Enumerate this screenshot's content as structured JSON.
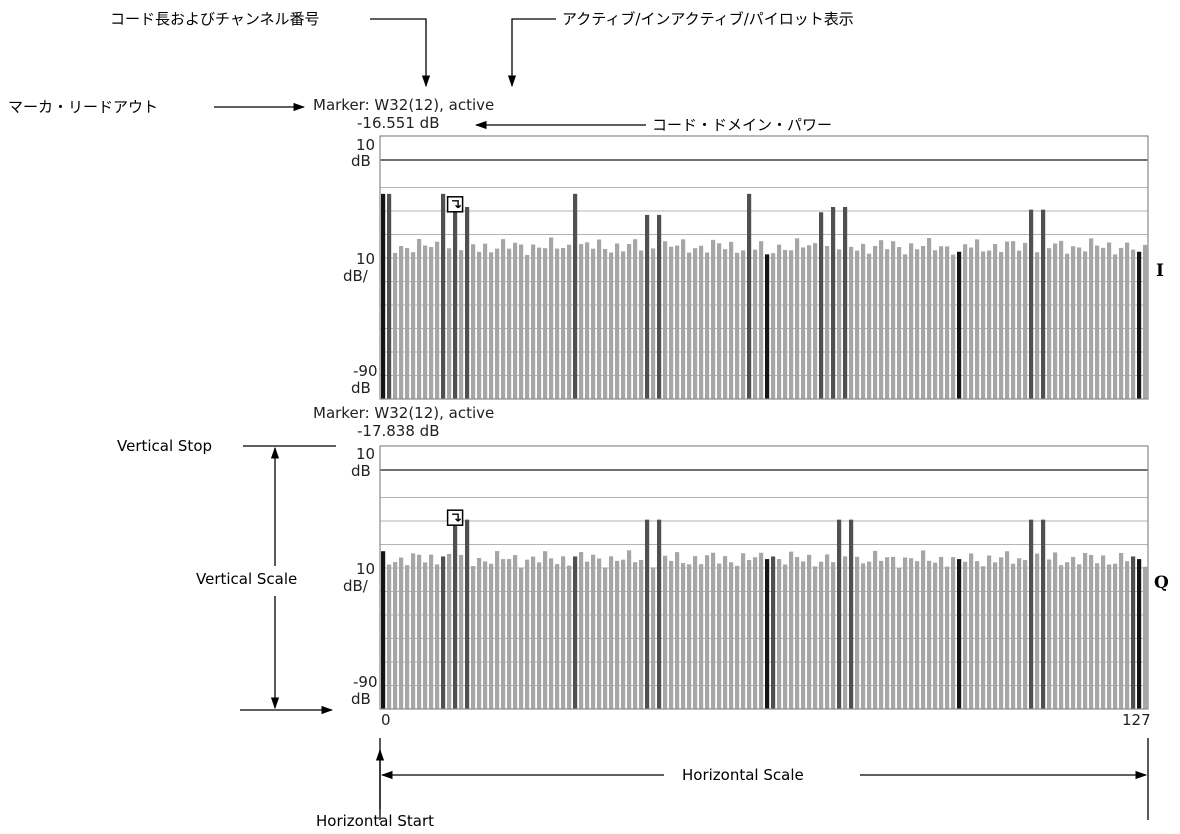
{
  "annotations": {
    "code_length_channel": "コード長およびチャンネル番号",
    "active_inactive_pilot": "アクティブ/インアクティブ/パイロット表示",
    "marker_readout": "マーカ・リードアウト",
    "code_domain_power": "コード・ドメイン・パワー",
    "vertical_stop": "Vertical Stop",
    "vertical_scale": "Vertical Scale",
    "horizontal_scale": "Horizontal Scale",
    "horizontal_start": "Horizontal Start"
  },
  "colors": {
    "bar_light": "#a6a6a6",
    "bar_active": "#505050",
    "bar_pilot": "#151515",
    "grid": "#b4b4b4",
    "frame": "#8a8a8a"
  },
  "panels": [
    {
      "channel": "I",
      "marker_line": "Marker: W32(12),   active",
      "marker_value": "-16.551 dB",
      "top_label": [
        "10",
        "dB"
      ],
      "scale_label": [
        "10",
        "dB/"
      ],
      "bottom_label": [
        "-90",
        "dB"
      ]
    },
    {
      "channel": "Q",
      "marker_line": "Marker: W32(12),   active",
      "marker_value": "-17.838 dB",
      "top_label": [
        "10",
        "dB"
      ],
      "scale_label": [
        "10",
        "dB/"
      ],
      "bottom_label": [
        "-90",
        "dB"
      ]
    }
  ],
  "x_axis": {
    "start": "0",
    "end": "127"
  },
  "chart_data": [
    {
      "type": "bar",
      "channel": "I",
      "x": [
        0,
        127
      ],
      "ylim": [
        -90,
        10
      ],
      "marker_code": 12,
      "ymax_label": "10 dB",
      "ymin_label": "-90 dB",
      "scale": "10 dB/",
      "noise_floor_db": -32,
      "active_codes": [
        {
          "code": 1,
          "db": -12
        },
        {
          "code": 10,
          "db": -12
        },
        {
          "code": 12,
          "db": -16.551
        },
        {
          "code": 14,
          "db": -17
        },
        {
          "code": 32,
          "db": -12
        },
        {
          "code": 44,
          "db": -20
        },
        {
          "code": 46,
          "db": -20
        },
        {
          "code": 61,
          "db": -12
        },
        {
          "code": 64,
          "db": -15
        },
        {
          "code": 73,
          "db": -19
        },
        {
          "code": 75,
          "db": -17
        },
        {
          "code": 77,
          "db": -17
        },
        {
          "code": 108,
          "db": -18
        },
        {
          "code": 110,
          "db": -18
        }
      ],
      "pilot_codes": [
        {
          "code": 0,
          "db": -12
        },
        {
          "code": 64,
          "db": -35
        },
        {
          "code": 96,
          "db": -34
        },
        {
          "code": 126,
          "db": -34
        }
      ]
    },
    {
      "type": "bar",
      "channel": "Q",
      "x": [
        0,
        127
      ],
      "ylim": [
        -90,
        10
      ],
      "marker_code": 12,
      "ymax_label": "10 dB",
      "ymin_label": "-90 dB",
      "scale": "10 dB/",
      "noise_floor_db": -33,
      "active_codes": [
        {
          "code": 10,
          "db": -32
        },
        {
          "code": 12,
          "db": -17.838
        },
        {
          "code": 14,
          "db": -18
        },
        {
          "code": 32,
          "db": -32
        },
        {
          "code": 44,
          "db": -18
        },
        {
          "code": 46,
          "db": -18
        },
        {
          "code": 65,
          "db": -32
        },
        {
          "code": 76,
          "db": -18
        },
        {
          "code": 78,
          "db": -18
        },
        {
          "code": 108,
          "db": -18
        },
        {
          "code": 110,
          "db": -18
        },
        {
          "code": 125,
          "db": -32
        }
      ],
      "pilot_codes": [
        {
          "code": 0,
          "db": -30
        },
        {
          "code": 64,
          "db": -33
        },
        {
          "code": 96,
          "db": -33
        },
        {
          "code": 126,
          "db": -33
        }
      ]
    }
  ]
}
